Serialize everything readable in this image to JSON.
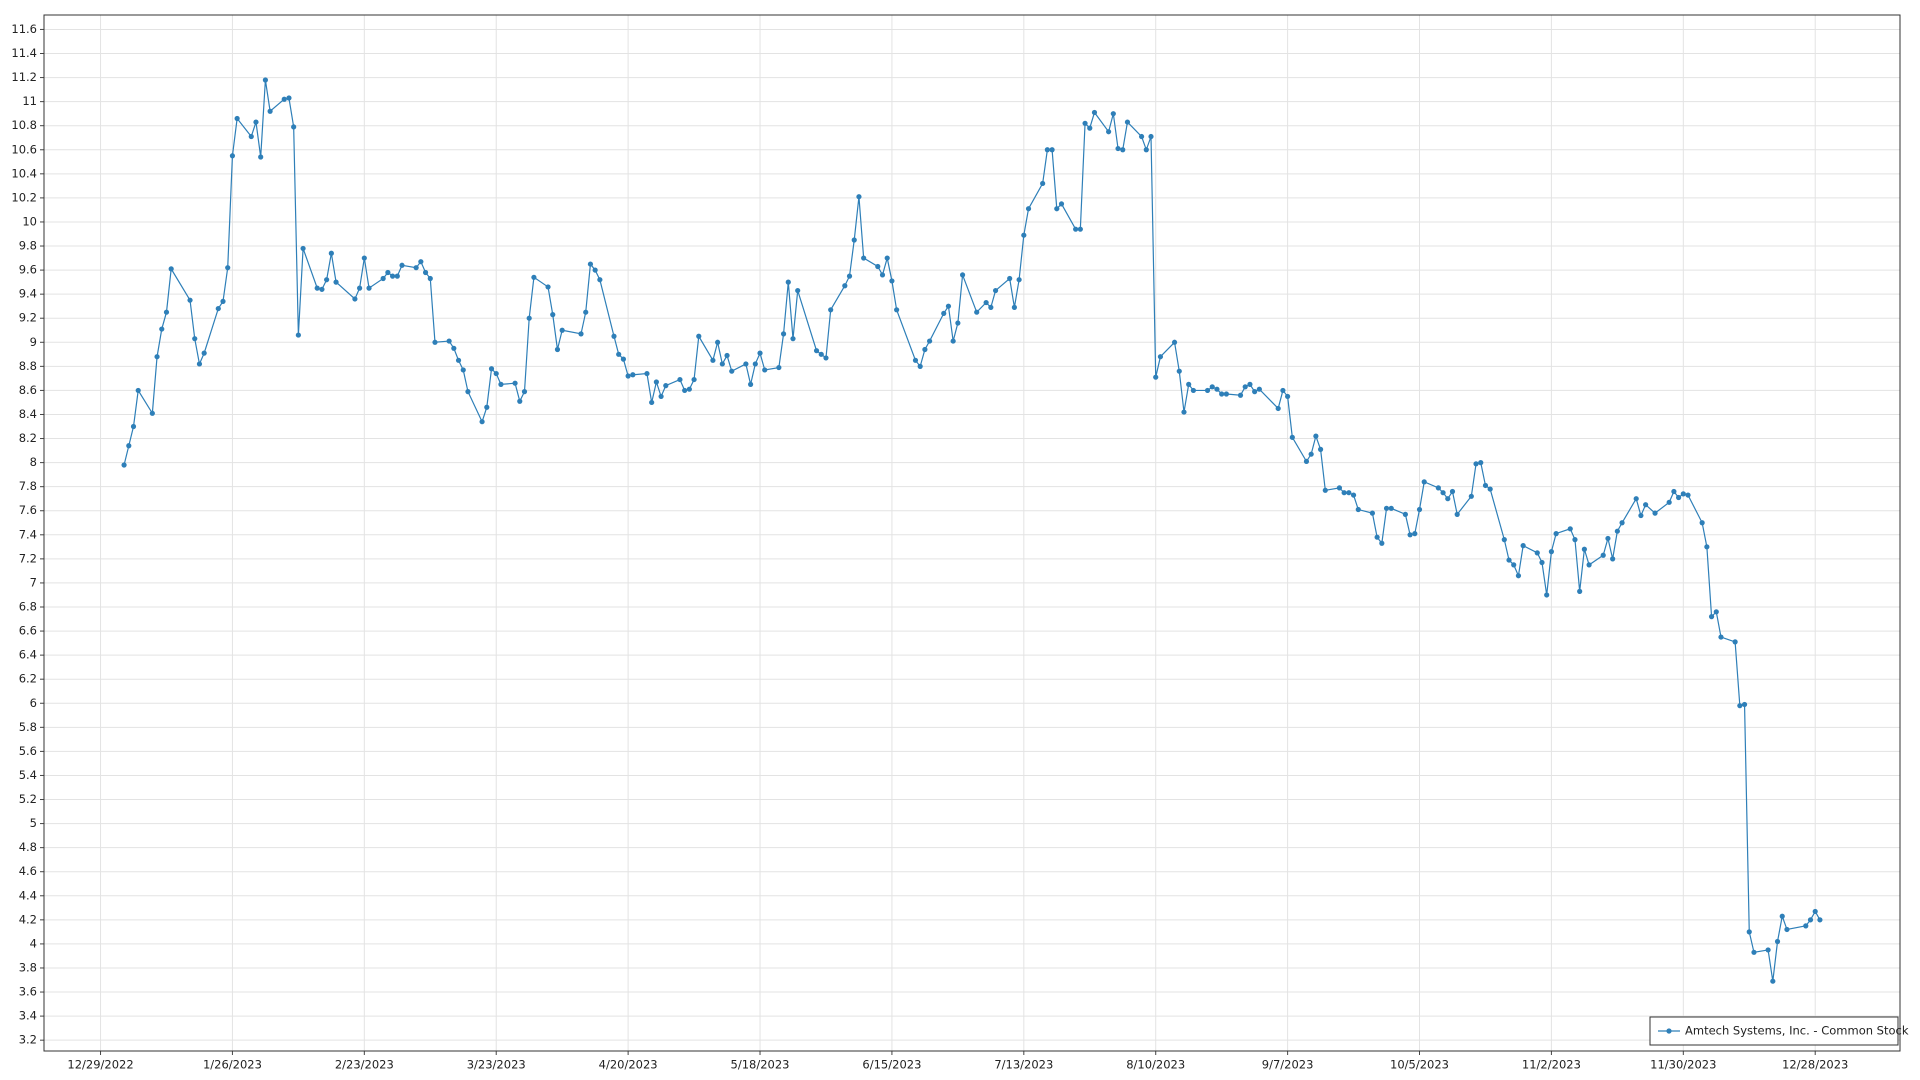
{
  "chart_data": {
    "type": "line",
    "x": [
      "1/3/2023",
      "1/4/2023",
      "1/5/2023",
      "1/6/2023",
      "1/9/2023",
      "1/10/2023",
      "1/11/2023",
      "1/12/2023",
      "1/13/2023",
      "1/17/2023",
      "1/18/2023",
      "1/19/2023",
      "1/20/2023",
      "1/23/2023",
      "1/24/2023",
      "1/25/2023",
      "1/26/2023",
      "1/27/2023",
      "1/30/2023",
      "1/31/2023",
      "2/1/2023",
      "2/2/2023",
      "2/3/2023",
      "2/6/2023",
      "2/7/2023",
      "2/8/2023",
      "2/9/2023",
      "2/10/2023",
      "2/13/2023",
      "2/14/2023",
      "2/15/2023",
      "2/16/2023",
      "2/17/2023",
      "2/21/2023",
      "2/22/2023",
      "2/23/2023",
      "2/24/2023",
      "2/27/2023",
      "2/28/2023",
      "3/1/2023",
      "3/2/2023",
      "3/3/2023",
      "3/6/2023",
      "3/7/2023",
      "3/8/2023",
      "3/9/2023",
      "3/10/2023",
      "3/13/2023",
      "3/14/2023",
      "3/15/2023",
      "3/16/2023",
      "3/17/2023",
      "3/20/2023",
      "3/21/2023",
      "3/22/2023",
      "3/23/2023",
      "3/24/2023",
      "3/27/2023",
      "3/28/2023",
      "3/29/2023",
      "3/30/2023",
      "3/31/2023",
      "4/3/2023",
      "4/4/2023",
      "4/5/2023",
      "4/6/2023",
      "4/10/2023",
      "4/11/2023",
      "4/12/2023",
      "4/13/2023",
      "4/14/2023",
      "4/17/2023",
      "4/18/2023",
      "4/19/2023",
      "4/20/2023",
      "4/21/2023",
      "4/24/2023",
      "4/25/2023",
      "4/26/2023",
      "4/27/2023",
      "4/28/2023",
      "5/1/2023",
      "5/2/2023",
      "5/3/2023",
      "5/4/2023",
      "5/5/2023",
      "5/8/2023",
      "5/9/2023",
      "5/10/2023",
      "5/11/2023",
      "5/12/2023",
      "5/15/2023",
      "5/16/2023",
      "5/17/2023",
      "5/18/2023",
      "5/19/2023",
      "5/22/2023",
      "5/23/2023",
      "5/24/2023",
      "5/25/2023",
      "5/26/2023",
      "5/30/2023",
      "5/31/2023",
      "6/1/2023",
      "6/2/2023",
      "6/5/2023",
      "6/6/2023",
      "6/7/2023",
      "6/8/2023",
      "6/9/2023",
      "6/12/2023",
      "6/13/2023",
      "6/14/2023",
      "6/15/2023",
      "6/16/2023",
      "6/20/2023",
      "6/21/2023",
      "6/22/2023",
      "6/23/2023",
      "6/26/2023",
      "6/27/2023",
      "6/28/2023",
      "6/29/2023",
      "6/30/2023",
      "7/3/2023",
      "7/5/2023",
      "7/6/2023",
      "7/7/2023",
      "7/10/2023",
      "7/11/2023",
      "7/12/2023",
      "7/13/2023",
      "7/14/2023",
      "7/17/2023",
      "7/18/2023",
      "7/19/2023",
      "7/20/2023",
      "7/21/2023",
      "7/24/2023",
      "7/25/2023",
      "7/26/2023",
      "7/27/2023",
      "7/28/2023",
      "7/31/2023",
      "8/1/2023",
      "8/2/2023",
      "8/3/2023",
      "8/4/2023",
      "8/7/2023",
      "8/8/2023",
      "8/9/2023",
      "8/10/2023",
      "8/11/2023",
      "8/14/2023",
      "8/15/2023",
      "8/16/2023",
      "8/17/2023",
      "8/18/2023",
      "8/21/2023",
      "8/22/2023",
      "8/23/2023",
      "8/24/2023",
      "8/25/2023",
      "8/28/2023",
      "8/29/2023",
      "8/30/2023",
      "8/31/2023",
      "9/1/2023",
      "9/5/2023",
      "9/6/2023",
      "9/7/2023",
      "9/8/2023",
      "9/11/2023",
      "9/12/2023",
      "9/13/2023",
      "9/14/2023",
      "9/15/2023",
      "9/18/2023",
      "9/19/2023",
      "9/20/2023",
      "9/21/2023",
      "9/22/2023",
      "9/25/2023",
      "9/26/2023",
      "9/27/2023",
      "9/28/2023",
      "9/29/2023",
      "10/2/2023",
      "10/3/2023",
      "10/4/2023",
      "10/5/2023",
      "10/6/2023",
      "10/9/2023",
      "10/10/2023",
      "10/11/2023",
      "10/12/2023",
      "10/13/2023",
      "10/16/2023",
      "10/17/2023",
      "10/18/2023",
      "10/19/2023",
      "10/20/2023",
      "10/23/2023",
      "10/24/2023",
      "10/25/2023",
      "10/26/2023",
      "10/27/2023",
      "10/30/2023",
      "10/31/2023",
      "11/1/2023",
      "11/2/2023",
      "11/3/2023",
      "11/6/2023",
      "11/7/2023",
      "11/8/2023",
      "11/9/2023",
      "11/10/2023",
      "11/13/2023",
      "11/14/2023",
      "11/15/2023",
      "11/16/2023",
      "11/17/2023",
      "11/20/2023",
      "11/21/2023",
      "11/22/2023",
      "11/24/2023",
      "11/27/2023",
      "11/28/2023",
      "11/29/2023",
      "11/30/2023",
      "12/1/2023",
      "12/4/2023",
      "12/5/2023",
      "12/6/2023",
      "12/7/2023",
      "12/8/2023",
      "12/11/2023",
      "12/12/2023",
      "12/13/2023",
      "12/14/2023",
      "12/15/2023",
      "12/18/2023",
      "12/19/2023",
      "12/20/2023",
      "12/21/2023",
      "12/22/2023",
      "12/26/2023",
      "12/27/2023",
      "12/28/2023",
      "12/29/2023"
    ],
    "series": [
      {
        "name": "Amtech Systems, Inc. - Common Stock",
        "color": "#2e7fb8",
        "values": [
          7.98,
          8.14,
          8.3,
          8.6,
          8.41,
          8.88,
          9.11,
          9.25,
          9.61,
          9.35,
          9.03,
          8.82,
          8.91,
          9.28,
          9.34,
          9.62,
          10.55,
          10.86,
          10.71,
          10.83,
          10.54,
          11.18,
          10.92,
          11.02,
          11.03,
          10.79,
          9.06,
          9.78,
          9.45,
          9.44,
          9.52,
          9.74,
          9.5,
          9.36,
          9.45,
          9.7,
          9.45,
          9.53,
          9.58,
          9.55,
          9.55,
          9.64,
          9.62,
          9.67,
          9.58,
          9.53,
          9.0,
          9.01,
          8.95,
          8.85,
          8.77,
          8.59,
          8.34,
          8.46,
          8.78,
          8.74,
          8.65,
          8.66,
          8.51,
          8.59,
          9.2,
          9.54,
          9.46,
          9.23,
          8.94,
          9.1,
          9.07,
          9.25,
          9.65,
          9.6,
          9.52,
          9.05,
          8.9,
          8.86,
          8.72,
          8.73,
          8.74,
          8.5,
          8.67,
          8.55,
          8.64,
          8.69,
          8.6,
          8.61,
          8.69,
          9.05,
          8.85,
          9.0,
          8.82,
          8.89,
          8.76,
          8.82,
          8.65,
          8.82,
          8.91,
          8.77,
          8.79,
          9.07,
          9.5,
          9.03,
          9.43,
          8.93,
          8.9,
          8.87,
          9.27,
          9.47,
          9.55,
          9.85,
          10.21,
          9.7,
          9.63,
          9.56,
          9.7,
          9.51,
          9.27,
          8.85,
          8.8,
          8.94,
          9.01,
          9.24,
          9.3,
          9.01,
          9.16,
          9.56,
          9.25,
          9.33,
          9.29,
          9.43,
          9.53,
          9.29,
          9.52,
          9.89,
          10.11,
          10.32,
          10.6,
          10.6,
          10.11,
          10.15,
          9.94,
          9.94,
          10.82,
          10.78,
          10.91,
          10.75,
          10.9,
          10.61,
          10.6,
          10.83,
          10.71,
          10.6,
          10.71,
          8.71,
          8.88,
          9.0,
          8.76,
          8.42,
          8.65,
          8.6,
          8.6,
          8.63,
          8.61,
          8.57,
          8.57,
          8.56,
          8.63,
          8.65,
          8.59,
          8.61,
          8.45,
          8.6,
          8.55,
          8.21,
          8.01,
          8.07,
          8.22,
          8.11,
          7.77,
          7.79,
          7.75,
          7.75,
          7.73,
          7.61,
          7.58,
          7.38,
          7.33,
          7.62,
          7.62,
          7.57,
          7.4,
          7.41,
          7.61,
          7.84,
          7.79,
          7.75,
          7.7,
          7.76,
          7.57,
          7.72,
          7.99,
          8.0,
          7.81,
          7.78,
          7.36,
          7.19,
          7.15,
          7.06,
          7.31,
          7.25,
          7.17,
          6.9,
          7.26,
          7.41,
          7.45,
          7.36,
          6.93,
          7.28,
          7.15,
          7.23,
          7.37,
          7.2,
          7.43,
          7.5,
          7.7,
          7.56,
          7.65,
          7.58,
          7.67,
          7.76,
          7.71,
          7.74,
          7.73,
          7.5,
          7.3,
          6.72,
          6.76,
          6.55,
          6.51,
          5.98,
          5.99,
          4.1,
          3.93,
          3.95,
          3.69,
          4.02,
          4.23,
          4.12,
          4.15,
          4.2,
          4.27,
          4.2
        ]
      }
    ],
    "xlim": [
      "12/17/2022",
      "1/15/2024"
    ],
    "xticks": [
      "12/29/2022",
      "1/26/2023",
      "2/23/2023",
      "3/23/2023",
      "4/20/2023",
      "5/18/2023",
      "6/15/2023",
      "7/13/2023",
      "8/10/2023",
      "9/7/2023",
      "10/5/2023",
      "11/2/2023",
      "11/30/2023",
      "12/28/2023"
    ],
    "ylim": [
      3.11,
      11.72
    ],
    "yticks": [
      3.2,
      3.4,
      3.6,
      3.8,
      4,
      4.2,
      4.4,
      4.6,
      4.8,
      5,
      5.2,
      5.4,
      5.6,
      5.8,
      6,
      6.2,
      6.4,
      6.6,
      6.8,
      7,
      7.2,
      7.4,
      7.6,
      7.8,
      8,
      8.2,
      8.4,
      8.6,
      8.8,
      9,
      9.2,
      9.4,
      9.6,
      9.8,
      10,
      10.2,
      10.4,
      10.6,
      10.8,
      11,
      11.2,
      11.4,
      11.6
    ],
    "grid": true,
    "legend": "bottom-right"
  }
}
